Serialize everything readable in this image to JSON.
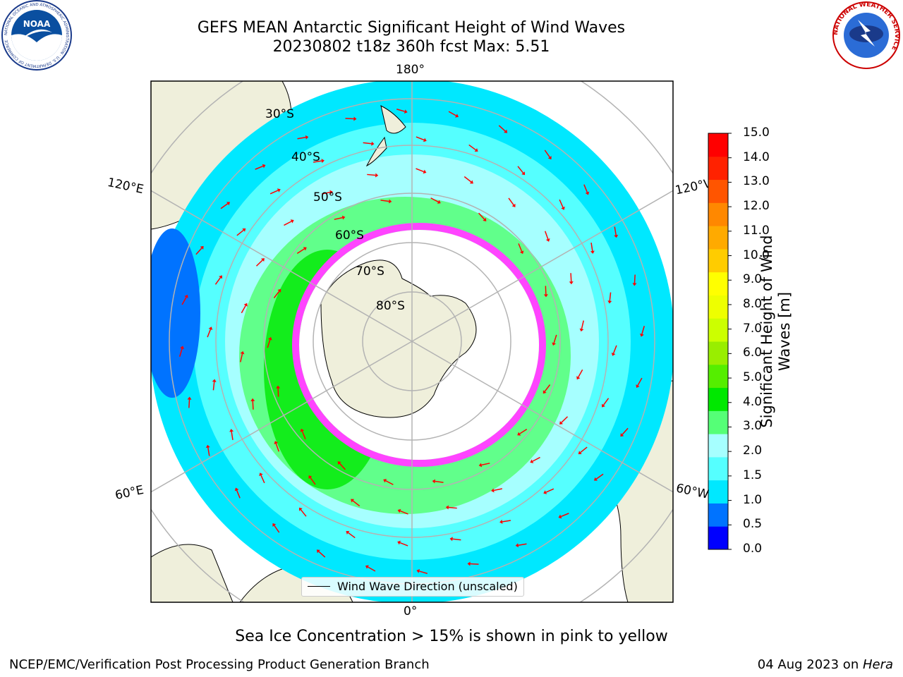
{
  "header": {
    "title_line1": "GEFS MEAN Antarctic Significant Height of Wind Waves",
    "title_line2": "20230802 t18z 360h fcst   Max: 5.51"
  },
  "logos": {
    "left_name": "NOAA",
    "left_ring_text": "NATIONAL OCEANIC AND ATMOSPHERIC ADMINISTRATION · U.S. DEPARTMENT OF COMMERCE",
    "right_ring_text": "NATIONAL WEATHER SERVICE"
  },
  "map": {
    "longitude_labels": {
      "top": "180°",
      "bottom": "0°",
      "left_upper": "120°E",
      "left_lower": "60°E",
      "right_upper": "120°W",
      "right_lower": "60°W"
    },
    "latitude_labels": [
      "30°S",
      "40°S",
      "50°S",
      "60°S",
      "70°S",
      "80°S"
    ],
    "legend_label": "Wind Wave Direction (unscaled)",
    "colors": {
      "land": "#efefdb",
      "sea_ice": "#ffffff",
      "arrows": "#ff0000",
      "grid": "#b3b3b3"
    }
  },
  "colorbar": {
    "label": "Significant Height of Wind Waves [m]",
    "ticks": [
      "15.0",
      "14.0",
      "13.0",
      "12.0",
      "11.0",
      "10.0",
      "9.0",
      "8.0",
      "7.0",
      "6.0",
      "5.0",
      "4.0",
      "3.0",
      "2.0",
      "1.5",
      "1.0",
      "0.5",
      "0.0"
    ],
    "colors": [
      "#0000ff",
      "#0073ff",
      "#00e8ff",
      "#55ffff",
      "#a6ffff",
      "#55ff77",
      "#00e800",
      "#55ee00",
      "#99ee00",
      "#ccff00",
      "#eeff00",
      "#ffff00",
      "#ffcc00",
      "#ffaa00",
      "#ff8800",
      "#ff5500",
      "#ff2200",
      "#ff0000"
    ]
  },
  "footer": {
    "note": "Sea Ice Concentration > 15% is shown in pink to yellow",
    "branch": "NCEP/EMC/Verification Post Processing Product Generation Branch",
    "date": "04 Aug 2023 on ",
    "machine": "Hera"
  }
}
